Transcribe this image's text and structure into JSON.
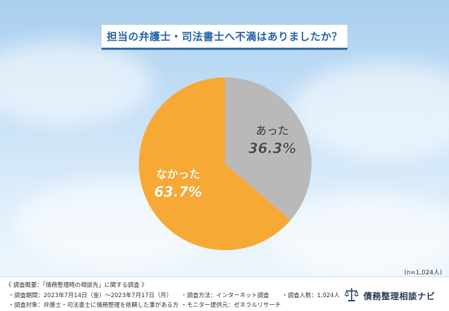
{
  "title": "担当の弁護士・司法書士へ不満はありましたか？",
  "sample_size": "(n=1,024人)",
  "colors": {
    "accent": "#2463a6",
    "slice_yes": "#b9b9b9",
    "slice_no": "#f7a935",
    "title_border": "#2f6ea8"
  },
  "chart_data": {
    "type": "pie",
    "title": "担当の弁護士・司法書士へ不満はありましたか？",
    "slices": [
      {
        "label": "あった",
        "value": 36.3,
        "value_text": "36.3%",
        "color": "#b9b9b9"
      },
      {
        "label": "なかった",
        "value": 63.7,
        "value_text": "63.7%",
        "color": "#f7a935"
      }
    ],
    "start": "top",
    "direction": "clockwise"
  },
  "footer": {
    "overview": "《 調査概要：「債務整理時の相談先」に関する調査 》",
    "period": "・調査期間：2023年7月14日（金）～2023年7月17日（月）",
    "method": "・調査方法：インターネット調査",
    "count": "・調査人数：1,024人",
    "target": "・調査対象：弁護士・司法書士に債務整理を依頼した事がある方",
    "provider": "・モニター提供元：ゼネラルリサーチ",
    "logo_text": "債務整理相談ナビ",
    "logo_icon": "scales-icon"
  }
}
